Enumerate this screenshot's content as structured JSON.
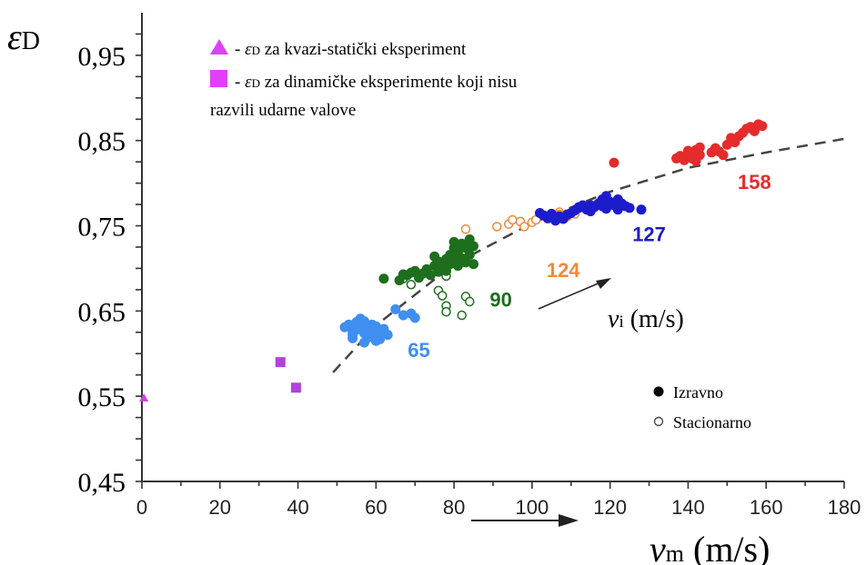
{
  "chart_data": {
    "type": "scatter",
    "xlim": [
      0,
      180
    ],
    "ylim": [
      0.45,
      1.0
    ],
    "x_ticks": [
      {
        "value": 0,
        "label": "0"
      },
      {
        "value": 20,
        "label": "20"
      },
      {
        "value": 40,
        "label": "40"
      },
      {
        "value": 60,
        "label": "60"
      },
      {
        "value": 80,
        "label": "80"
      },
      {
        "value": 100,
        "label": "100"
      },
      {
        "value": 120,
        "label": "120"
      },
      {
        "value": 140,
        "label": "140"
      },
      {
        "value": 160,
        "label": "160"
      },
      {
        "value": 180,
        "label": "180"
      }
    ],
    "y_ticks": [
      {
        "value": 0.45,
        "label": "0,45"
      },
      {
        "value": 0.55,
        "label": "0,55"
      },
      {
        "value": 0.65,
        "label": "0,65"
      },
      {
        "value": 0.75,
        "label": "0,75"
      },
      {
        "value": 0.85,
        "label": "0,85"
      },
      {
        "value": 0.95,
        "label": "0,95"
      }
    ],
    "ylabel": {
      "main": "ε",
      "sub": "D"
    },
    "xlabel": {
      "main": "v",
      "sub": "m",
      "unit": "(m/s)"
    },
    "grid": false,
    "legend_placement": "top-left",
    "legend": [
      {
        "marker": "triangle",
        "color": "#e040fb",
        "prefix": "- ",
        "symbol": "ε",
        "sub": "D",
        "text": " za kvazi-statički eksperiment"
      },
      {
        "marker": "square",
        "color": "#e040fb",
        "prefix": "- ",
        "symbol": "ε",
        "sub": "D",
        "text": " za dinamičke eksperimente koji nisu",
        "continuation": "razvili udarne valove"
      }
    ],
    "fill_legend": [
      {
        "style": "filled",
        "label": "Izravno"
      },
      {
        "style": "open",
        "label": "Stacionarno"
      }
    ],
    "annotation": {
      "main": "v",
      "sub": "i",
      "unit": "(m/s)"
    },
    "trend_line": {
      "style": "dashed",
      "color": "#444444",
      "points": [
        [
          49,
          0.578
        ],
        [
          60,
          0.633
        ],
        [
          80,
          0.705
        ],
        [
          100,
          0.753
        ],
        [
          120,
          0.79
        ],
        [
          140,
          0.818
        ],
        [
          160,
          0.836
        ],
        [
          180,
          0.852
        ]
      ]
    },
    "markers": [
      {
        "name": "quasi-static",
        "shape": "triangle",
        "color": "#cc44dd",
        "points": [
          [
            0.5,
            0.548
          ]
        ]
      },
      {
        "name": "dynamic-no-shock",
        "shape": "square",
        "color": "#b044d8",
        "points": [
          [
            35.5,
            0.59
          ],
          [
            39.5,
            0.56
          ]
        ]
      }
    ],
    "series": [
      {
        "name": "65",
        "color": "#3f8ef0",
        "label_pos": [
          71,
          0.596
        ],
        "filled": [
          [
            52,
            0.631
          ],
          [
            53,
            0.634
          ],
          [
            54,
            0.626
          ],
          [
            54,
            0.622
          ],
          [
            55,
            0.637
          ],
          [
            55,
            0.628
          ],
          [
            56,
            0.641
          ],
          [
            56,
            0.632
          ],
          [
            57,
            0.624
          ],
          [
            57,
            0.638
          ],
          [
            58,
            0.629
          ],
          [
            58,
            0.619
          ],
          [
            59,
            0.634
          ],
          [
            59,
            0.627
          ],
          [
            60,
            0.621
          ],
          [
            60,
            0.632
          ],
          [
            61,
            0.626
          ],
          [
            61,
            0.617
          ],
          [
            62,
            0.629
          ],
          [
            63,
            0.622
          ],
          [
            54,
            0.618
          ],
          [
            57,
            0.613
          ],
          [
            60,
            0.615
          ],
          [
            65,
            0.652
          ],
          [
            67,
            0.645
          ],
          [
            69,
            0.647
          ],
          [
            70,
            0.642
          ]
        ],
        "open": []
      },
      {
        "name": "90",
        "color": "#1e6e1e",
        "label_pos": [
          92,
          0.655
        ],
        "filled": [
          [
            62,
            0.688
          ],
          [
            66,
            0.686
          ],
          [
            67,
            0.693
          ],
          [
            68,
            0.692
          ],
          [
            69,
            0.695
          ],
          [
            70,
            0.697
          ],
          [
            71,
            0.689
          ],
          [
            72,
            0.694
          ],
          [
            73,
            0.699
          ],
          [
            74,
            0.692
          ],
          [
            75,
            0.703
          ],
          [
            76,
            0.696
          ],
          [
            76,
            0.708
          ],
          [
            77,
            0.701
          ],
          [
            78,
            0.711
          ],
          [
            78,
            0.697
          ],
          [
            79,
            0.716
          ],
          [
            79,
            0.705
          ],
          [
            80,
            0.724
          ],
          [
            80,
            0.712
          ],
          [
            81,
            0.703
          ],
          [
            81,
            0.719
          ],
          [
            82,
            0.729
          ],
          [
            82,
            0.712
          ],
          [
            83,
            0.707
          ],
          [
            83,
            0.724
          ],
          [
            84,
            0.734
          ],
          [
            84,
            0.716
          ],
          [
            85,
            0.726
          ],
          [
            85,
            0.705
          ],
          [
            80,
            0.731
          ],
          [
            75,
            0.714
          ]
        ],
        "open": [
          [
            67,
            0.688
          ],
          [
            69,
            0.681
          ],
          [
            76,
            0.674
          ],
          [
            77,
            0.668
          ],
          [
            78,
            0.656
          ],
          [
            78,
            0.649
          ],
          [
            82,
            0.645
          ],
          [
            83,
            0.667
          ],
          [
            84,
            0.661
          ],
          [
            78,
            0.691
          ]
        ]
      },
      {
        "name": "124",
        "color": "#ef8a3a",
        "label_pos": [
          108,
          0.69
        ],
        "filled": [
          [
            107,
            0.763
          ],
          [
            109,
            0.761
          ]
        ],
        "open": [
          [
            83,
            0.746
          ],
          [
            91,
            0.749
          ],
          [
            94,
            0.752
          ],
          [
            95,
            0.757
          ],
          [
            97,
            0.755
          ],
          [
            98,
            0.749
          ],
          [
            100,
            0.754
          ],
          [
            101,
            0.757
          ],
          [
            104,
            0.758
          ],
          [
            105,
            0.761
          ],
          [
            107,
            0.766
          ],
          [
            109,
            0.764
          ],
          [
            111,
            0.764
          ]
        ]
      },
      {
        "name": "127",
        "color": "#1c1ccc",
        "label_pos": [
          130,
          0.732
        ],
        "filled": [
          [
            102,
            0.765
          ],
          [
            103,
            0.762
          ],
          [
            104,
            0.759
          ],
          [
            105,
            0.764
          ],
          [
            106,
            0.756
          ],
          [
            107,
            0.761
          ],
          [
            108,
            0.758
          ],
          [
            109,
            0.763
          ],
          [
            110,
            0.765
          ],
          [
            111,
            0.768
          ],
          [
            112,
            0.771
          ],
          [
            113,
            0.774
          ],
          [
            114,
            0.769
          ],
          [
            115,
            0.767
          ],
          [
            116,
            0.772
          ],
          [
            117,
            0.776
          ],
          [
            118,
            0.781
          ],
          [
            118,
            0.773
          ],
          [
            119,
            0.785
          ],
          [
            119,
            0.77
          ],
          [
            120,
            0.778
          ],
          [
            121,
            0.774
          ],
          [
            122,
            0.781
          ],
          [
            122,
            0.769
          ],
          [
            123,
            0.776
          ],
          [
            124,
            0.773
          ],
          [
            125,
            0.771
          ],
          [
            128,
            0.769
          ],
          [
            112,
            0.772
          ],
          [
            115,
            0.774
          ]
        ],
        "open": []
      },
      {
        "name": "158",
        "color": "#e52b2b",
        "label_pos": [
          157,
          0.793
        ],
        "filled": [
          [
            121,
            0.824
          ],
          [
            137,
            0.829
          ],
          [
            138,
            0.832
          ],
          [
            139,
            0.827
          ],
          [
            140,
            0.834
          ],
          [
            141,
            0.829
          ],
          [
            142,
            0.839
          ],
          [
            142,
            0.826
          ],
          [
            143,
            0.833
          ],
          [
            143,
            0.842
          ],
          [
            146,
            0.836
          ],
          [
            147,
            0.841
          ],
          [
            148,
            0.837
          ],
          [
            149,
            0.833
          ],
          [
            150,
            0.845
          ],
          [
            151,
            0.853
          ],
          [
            152,
            0.848
          ],
          [
            153,
            0.855
          ],
          [
            154,
            0.859
          ],
          [
            155,
            0.864
          ],
          [
            156,
            0.866
          ],
          [
            157,
            0.861
          ],
          [
            158,
            0.869
          ],
          [
            159,
            0.867
          ],
          [
            140,
            0.838
          ]
        ],
        "open": []
      }
    ]
  }
}
